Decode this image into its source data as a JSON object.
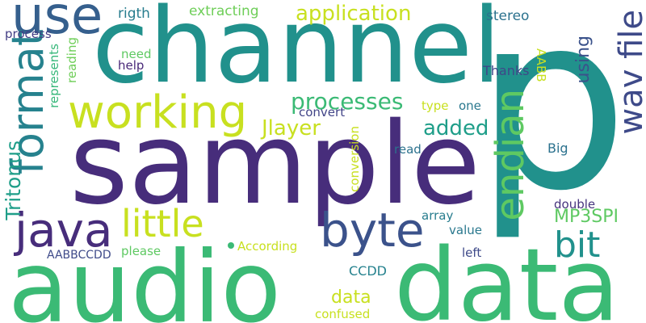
{
  "words": [
    {
      "id": "p",
      "text": "p",
      "color": "#21918c"
    },
    {
      "id": "channel",
      "text": "channel",
      "color": "#21918c"
    },
    {
      "id": "sample",
      "text": "sample",
      "color": "#472d7b"
    },
    {
      "id": "audio",
      "text": "audio",
      "color": "#3bba75"
    },
    {
      "id": "data-large",
      "text": "data",
      "color": "#3bba75"
    },
    {
      "id": "use",
      "text": "use",
      "color": "#355f8d"
    },
    {
      "id": "working",
      "text": "working",
      "color": "#c8e020"
    },
    {
      "id": "format",
      "text": "format",
      "color": "#26828e"
    },
    {
      "id": "java",
      "text": "java",
      "color": "#472d7b"
    },
    {
      "id": "byte",
      "text": "byte",
      "color": "#3b528b"
    },
    {
      "id": "endian",
      "text": "endian",
      "color": "#5ec962"
    },
    {
      "id": "wav-file",
      "text": "wav file",
      "color": "#3e4a89"
    },
    {
      "id": "little",
      "text": "little",
      "color": "#c8e020"
    },
    {
      "id": "bit",
      "text": "bit",
      "color": "#21918c"
    },
    {
      "id": "application",
      "text": "application",
      "color": "#c8e020"
    },
    {
      "id": "processes",
      "text": "processes",
      "color": "#3bba75"
    },
    {
      "id": "jlayer",
      "text": "Jlayer",
      "color": "#c8e020"
    },
    {
      "id": "added",
      "text": "added",
      "color": "#1f9e89"
    },
    {
      "id": "mp3spi",
      "text": "MP3SPI",
      "color": "#5ec962"
    },
    {
      "id": "tritonus",
      "text": "Tritonus",
      "color": "#1f9e89"
    },
    {
      "id": "extracting",
      "text": "extracting",
      "color": "#6ece58"
    },
    {
      "id": "rigth",
      "text": "rigth",
      "color": "#287d8e"
    },
    {
      "id": "stereo",
      "text": "stereo",
      "color": "#2c728e"
    },
    {
      "id": "using",
      "text": "using",
      "color": "#3b528b"
    },
    {
      "id": "process",
      "text": "process",
      "color": "#433e85"
    },
    {
      "id": "need",
      "text": "need",
      "color": "#5ec962"
    },
    {
      "id": "help",
      "text": "help",
      "color": "#482878"
    },
    {
      "id": "represents",
      "text": "represents",
      "color": "#35b779"
    },
    {
      "id": "reading",
      "text": "reading",
      "color": "#6ece58"
    },
    {
      "id": "thanks",
      "text": "Thanks",
      "color": "#3f4788"
    },
    {
      "id": "aabb",
      "text": "AABB",
      "color": "#c8e020"
    },
    {
      "id": "type",
      "text": "type",
      "color": "#c8e020"
    },
    {
      "id": "one",
      "text": "one",
      "color": "#2a788e"
    },
    {
      "id": "convert",
      "text": "convert",
      "color": "#414487"
    },
    {
      "id": "conversion",
      "text": "conversion",
      "color": "#c8e020"
    },
    {
      "id": "read",
      "text": "read",
      "color": "#2c728e"
    },
    {
      "id": "big",
      "text": "Big",
      "color": "#2c728e"
    },
    {
      "id": "array",
      "text": "array",
      "color": "#287d8e"
    },
    {
      "id": "double",
      "text": "double",
      "color": "#46337e"
    },
    {
      "id": "value",
      "text": "value",
      "color": "#2a788e"
    },
    {
      "id": "according",
      "text": "According",
      "color": "#c8e020"
    },
    {
      "id": "please",
      "text": "please",
      "color": "#5ec962"
    },
    {
      "id": "aabbccdd",
      "text": "AABBCCDD",
      "color": "#3e4a89"
    },
    {
      "id": "left",
      "text": "left",
      "color": "#3e4a89"
    },
    {
      "id": "data-small",
      "text": "data",
      "color": "#c8e020"
    },
    {
      "id": "ccdd",
      "text": "CCDD",
      "color": "#26828e"
    },
    {
      "id": "confused",
      "text": "confused",
      "color": "#c8e020"
    }
  ],
  "dots": [
    {
      "id": "dot-1",
      "color": "#3bba75"
    }
  ]
}
